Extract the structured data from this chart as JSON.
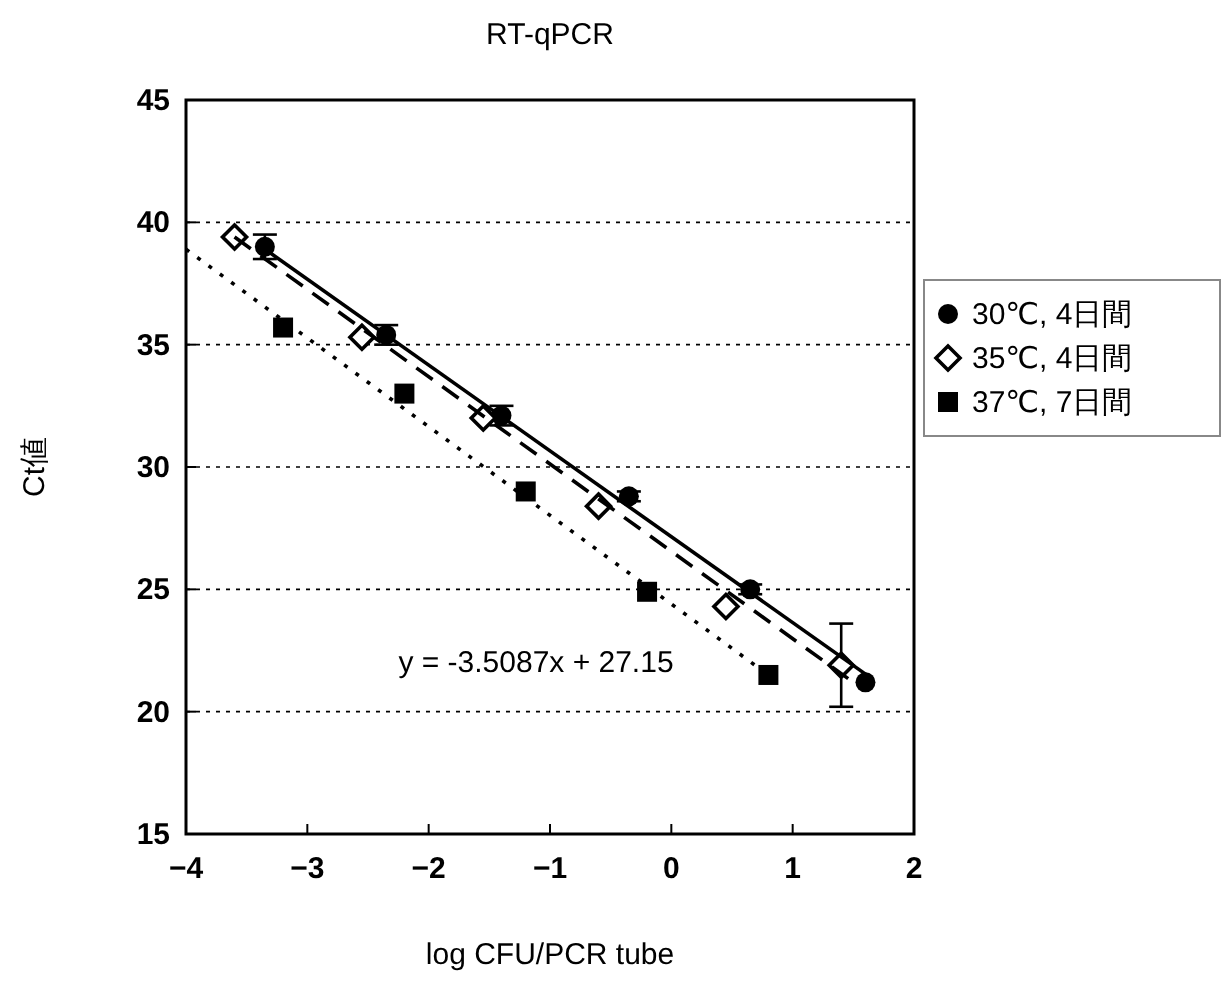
{
  "chart_data": {
    "type": "scatter",
    "title": "RT-qPCR",
    "xlabel": "log CFU/PCR tube",
    "ylabel": "Ct値",
    "xlim": [
      -4,
      2
    ],
    "xticks": [
      -4,
      -3,
      -2,
      -1,
      0,
      1,
      2
    ],
    "ylim": [
      15,
      45
    ],
    "yticks": [
      15,
      20,
      25,
      30,
      35,
      40,
      45
    ],
    "grid": "y",
    "legend": "right",
    "annotations": [
      "y = -3.5087x + 27.15"
    ],
    "series": [
      {
        "name": "30℃, 4日間",
        "color": "#000000",
        "marker": "circle",
        "x": [
          -3.35,
          -2.35,
          -1.4,
          -0.35,
          0.65,
          1.6
        ],
        "values": [
          39.0,
          35.4,
          32.1,
          28.8,
          25.0,
          21.2
        ],
        "errors": [
          0.5,
          0.4,
          0.4,
          0.2,
          0.2,
          null
        ]
      },
      {
        "name": "35℃, 4日間",
        "color": "#000000",
        "marker": "diamond",
        "x": [
          -3.6,
          -2.55,
          -1.55,
          -0.6,
          0.45,
          1.4
        ],
        "values": [
          39.4,
          35.3,
          32.0,
          28.4,
          24.3,
          21.9
        ],
        "errors": [
          null,
          null,
          null,
          null,
          null,
          1.7
        ]
      },
      {
        "name": "37℃, 7日間",
        "color": "#000000",
        "marker": "square",
        "x": [
          -3.2,
          -2.2,
          -1.2,
          -0.2,
          0.8
        ],
        "values": [
          35.7,
          33.0,
          29.0,
          24.9,
          21.5
        ]
      },
      {
        "type": "line",
        "color": "#000000",
        "marker": "none",
        "line_style": "solid",
        "x": [
          -3.4,
          1.65
        ],
        "values": [
          39.08,
          21.36
        ]
      },
      {
        "type": "line",
        "color": "#000000",
        "marker": "none",
        "line_style": "dashed",
        "x": [
          -3.6,
          1.5
        ],
        "values": [
          39.4,
          21.2
        ]
      },
      {
        "type": "line",
        "color": "#000000",
        "marker": "none",
        "line_style": "dotted",
        "x": [
          -4,
          0.8
        ],
        "values": [
          38.9,
          21.5
        ]
      }
    ]
  }
}
